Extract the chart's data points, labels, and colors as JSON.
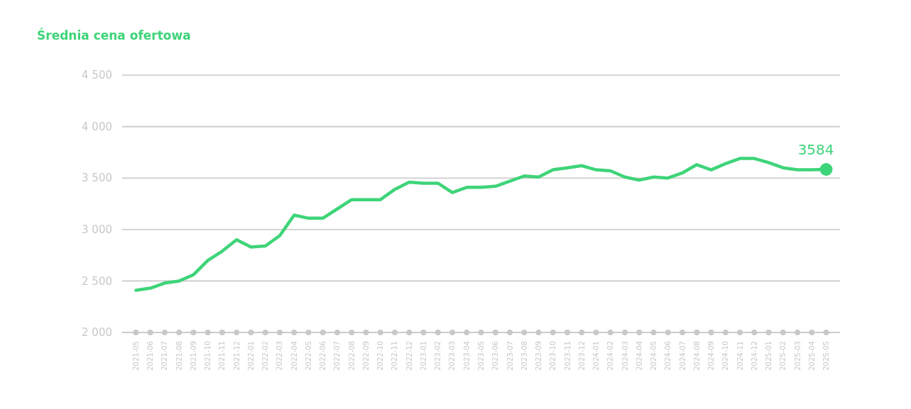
{
  "chart_data": {
    "type": "line",
    "title": "Średnia cena ofertowa",
    "categories": [
      "2021-05",
      "2021-06",
      "2021-07",
      "2021-08",
      "2021-09",
      "2021-10",
      "2021-11",
      "2021-12",
      "2022-01",
      "2022-02",
      "2022-03",
      "2022-04",
      "2022-05",
      "2022-06",
      "2022-07",
      "2022-08",
      "2022-09",
      "2022-10",
      "2022-11",
      "2022-12",
      "2023-01",
      "2023-02",
      "2023-03",
      "2023-04",
      "2023-05",
      "2023-06",
      "2023-07",
      "2023-08",
      "2023-09",
      "2023-10",
      "2023-11",
      "2023-12",
      "2024-01",
      "2024-02",
      "2024-03",
      "2024-04",
      "2024-05",
      "2024-06",
      "2024-07",
      "2024-08",
      "2024-09",
      "2024-10",
      "2024-11",
      "2024-12",
      "2025-01",
      "2025-02",
      "2025-03",
      "2025-04",
      "2025-05"
    ],
    "values": [
      2410,
      2430,
      2480,
      2500,
      2560,
      2700,
      2790,
      2900,
      2830,
      2840,
      2940,
      3140,
      3110,
      3110,
      3200,
      3290,
      3290,
      3290,
      3390,
      3460,
      3450,
      3450,
      3360,
      3410,
      3410,
      3420,
      3470,
      3520,
      3510,
      3580,
      3600,
      3620,
      3580,
      3570,
      3510,
      3480,
      3510,
      3500,
      3550,
      3630,
      3580,
      3640,
      3690,
      3690,
      3650,
      3600,
      3580,
      3580,
      3584
    ],
    "value_labels": [
      null,
      null,
      null,
      null,
      null,
      null,
      null,
      null,
      null,
      null,
      null,
      null,
      null,
      null,
      null,
      null,
      null,
      null,
      null,
      null,
      null,
      null,
      null,
      null,
      null,
      null,
      null,
      null,
      null,
      null,
      null,
      null,
      null,
      null,
      null,
      null,
      null,
      null,
      null,
      null,
      null,
      null,
      null,
      null,
      null,
      null,
      null,
      null,
      "3584"
    ],
    "color": "#3ed479",
    "ylim": [
      2000,
      4500
    ],
    "yticks": [
      {
        "value": 2000,
        "label": "2 000"
      },
      {
        "value": 2500,
        "label": "2 500"
      },
      {
        "value": 3000,
        "label": "3 000"
      },
      {
        "value": 3500,
        "label": "3 500"
      },
      {
        "value": 4000,
        "label": "4 000"
      },
      {
        "value": 4500,
        "label": "4 500"
      }
    ],
    "grid": "y"
  }
}
